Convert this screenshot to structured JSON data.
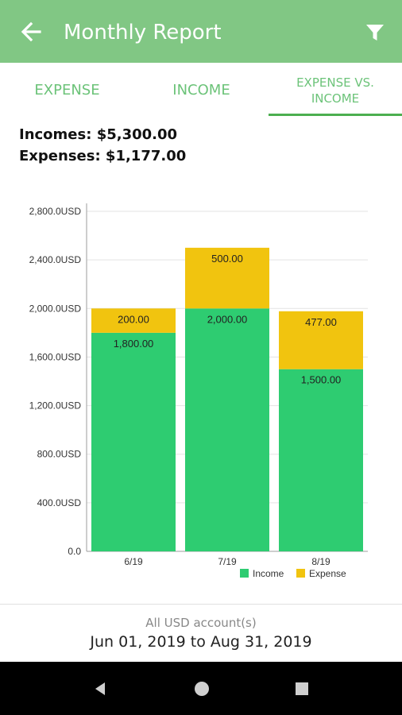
{
  "appbar": {
    "title": "Monthly Report",
    "back_icon": "arrow-left-icon",
    "filter_icon": "filter-icon",
    "background": "#81c784"
  },
  "tabs": [
    {
      "label": "EXPENSE",
      "selected": false
    },
    {
      "label": "INCOME",
      "selected": false
    },
    {
      "label": "EXPENSE VS. INCOME",
      "selected": true
    }
  ],
  "summary": {
    "incomes": "Incomes: $5,300.00",
    "expenses": "Expenses: $1,177.00"
  },
  "chart_data": {
    "type": "bar",
    "stacked": true,
    "categories": [
      "6/19",
      "7/19",
      "8/19"
    ],
    "series": [
      {
        "name": "Income",
        "color": "#2ecc71",
        "values": [
          1800,
          2000,
          1500
        ],
        "labels": [
          "1,800.00",
          "2,000.00",
          "1,500.00"
        ]
      },
      {
        "name": "Expense",
        "color": "#f1c40f",
        "values": [
          200,
          500,
          477
        ],
        "labels": [
          "200.00",
          "500.00",
          "477.00"
        ]
      }
    ],
    "y_ticks": [
      "0.0",
      "400.0USD",
      "800.0USD",
      "1,200.0USD",
      "1,600.0USD",
      "2,000.0USD",
      "2,400.0USD",
      "2,800.0USD"
    ],
    "ylim": [
      0,
      2800
    ],
    "grid": true,
    "legend": "bottom-right"
  },
  "footer": {
    "account": "All USD account(s)",
    "range": "Jun 01, 2019 to Aug 31, 2019"
  },
  "navbar": {
    "back": "nav-back-icon",
    "home": "nav-home-icon",
    "recents": "nav-recents-icon"
  }
}
